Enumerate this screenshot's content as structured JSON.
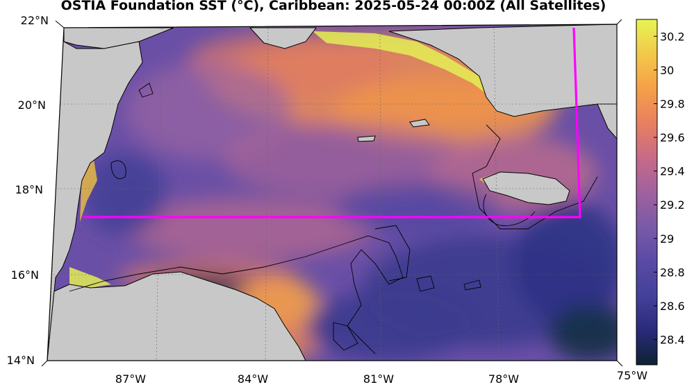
{
  "title": "OSTIA Foundation SST (°C), Caribbean: 2025-05-24 00:00Z (All Satellites)",
  "lat_labels": [
    "22°N",
    "20°N",
    "18°N",
    "16°N",
    "14°N"
  ],
  "lon_labels": [
    "87°W",
    "84°W",
    "81°W",
    "78°W",
    "75°W"
  ],
  "colorbar": {
    "ticks": [
      "30.2",
      "30",
      "29.8",
      "29.6",
      "29.4",
      "29.2",
      "29",
      "28.8",
      "28.6",
      "28.4"
    ],
    "range": [
      28.25,
      30.3
    ],
    "colors": [
      "#0d2233",
      "#2a2a7a",
      "#43419b",
      "#5a4aa5",
      "#7a5aa8",
      "#a0619f",
      "#c86a88",
      "#e88060",
      "#f5a048",
      "#f3c84a",
      "#e6f552"
    ]
  },
  "colors": {
    "land": "#c8c8c8",
    "box": "#ff00ff",
    "coast": "#000000"
  }
}
